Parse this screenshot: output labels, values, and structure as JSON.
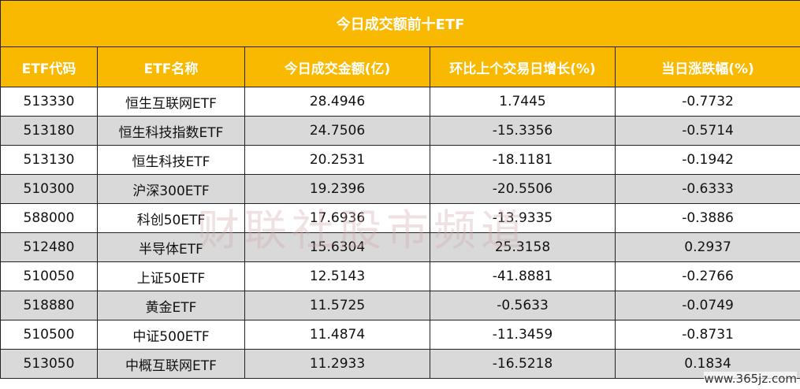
{
  "table": {
    "title": "今日成交额前十ETF",
    "header": [
      "ETF代码",
      "ETF名称",
      "今日成交金额(亿)",
      "环比上个交易日增长(%)",
      "当日涨跌幅(%)"
    ],
    "rows": [
      [
        "513330",
        "恒生互联网ETF",
        "28.4946",
        "1.7445",
        "-0.7732"
      ],
      [
        "513180",
        "恒生科技指数ETF",
        "24.7506",
        "-15.3356",
        "-0.5714"
      ],
      [
        "513130",
        "恒生科技ETF",
        "20.2531",
        "-18.1181",
        "-0.1942"
      ],
      [
        "510300",
        "沪深300ETF",
        "19.2396",
        "-20.5506",
        "-0.6333"
      ],
      [
        "588000",
        "科创50ETF",
        "17.6936",
        "-13.9335",
        "-0.3886"
      ],
      [
        "512480",
        "半导体ETF",
        "15.6304",
        "25.3158",
        "0.2937"
      ],
      [
        "510050",
        "上证50ETF",
        "12.5143",
        "-41.8881",
        "-0.2766"
      ],
      [
        "518880",
        "黄金ETF",
        "11.5725",
        "-0.5633",
        "-0.0749"
      ],
      [
        "510500",
        "中证500ETF",
        "11.4874",
        "-11.3459",
        "-0.8731"
      ],
      [
        "513050",
        "中概互联网ETF",
        "11.2933",
        "-16.5218",
        "0.1834"
      ]
    ]
  },
  "watermark": {
    "brand": "财联社股市频道",
    "site": "www.365jz.com"
  }
}
